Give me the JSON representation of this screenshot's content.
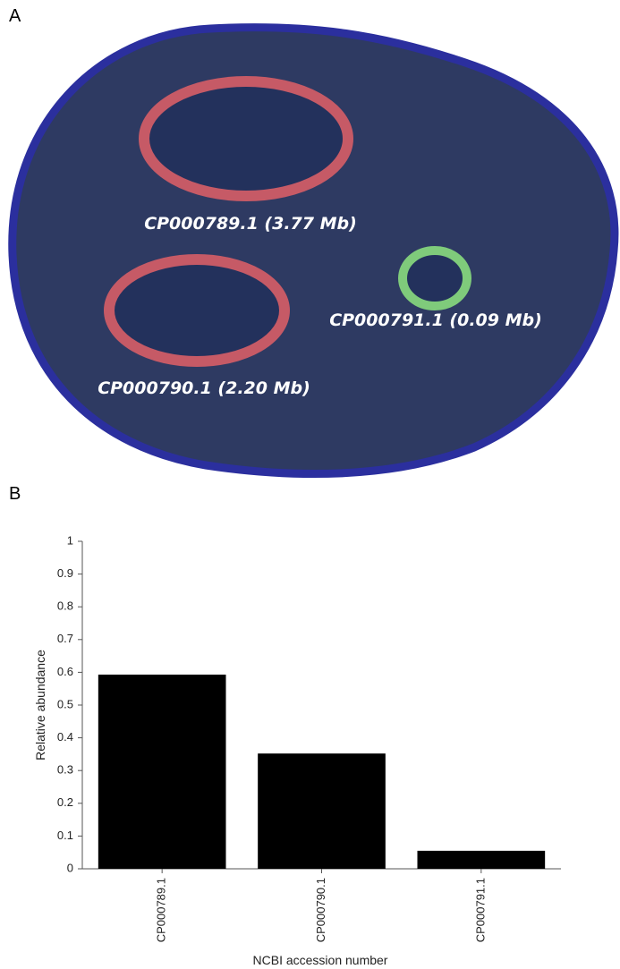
{
  "panel_a": {
    "label": "A",
    "replicons": [
      {
        "label": "CP000789.1 (3.77 Mb)"
      },
      {
        "label": "CP000790.1 (2.20 Mb)"
      },
      {
        "label": "CP000791.1 (0.09 Mb)"
      }
    ]
  },
  "panel_b": {
    "label": "B"
  },
  "chart_data": {
    "type": "bar",
    "categories": [
      "CP000789.1",
      "CP000790.1",
      "CP000791.1"
    ],
    "values": [
      0.593,
      0.352,
      0.055
    ],
    "color": "#000000",
    "ylim": [
      0,
      1
    ],
    "yticks": [
      0,
      0.1,
      0.2,
      0.3,
      0.4,
      0.5,
      0.6,
      0.7,
      0.8,
      0.9,
      1
    ],
    "ylabel": "Relative abundance",
    "xlabel": "NCBI accession number",
    "grid": false
  }
}
